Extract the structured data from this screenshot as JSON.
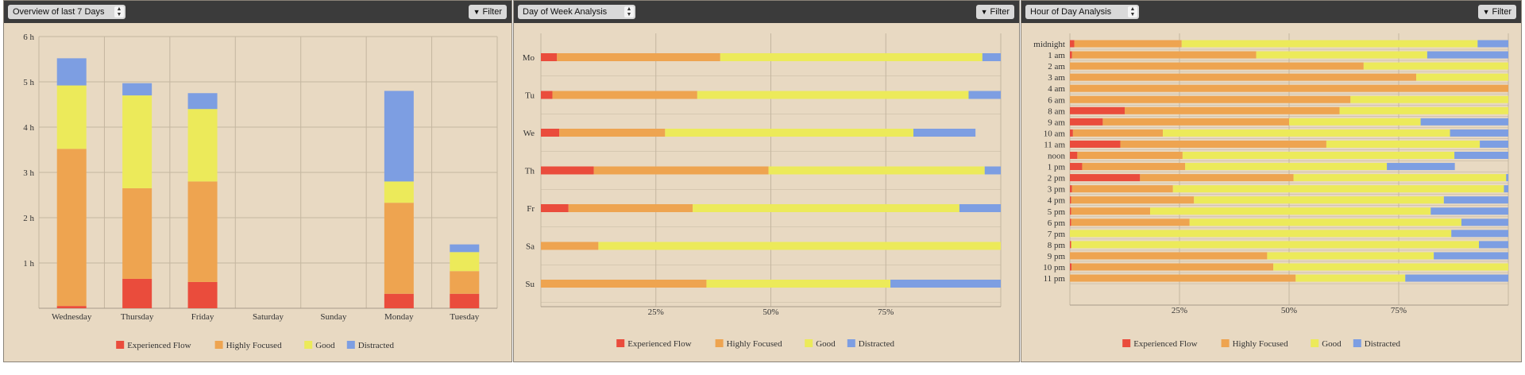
{
  "colors": {
    "flow": "#ea4c3c",
    "focused": "#eea450",
    "good": "#ecea5a",
    "distracted": "#7d9ee2"
  },
  "legend": [
    "Experienced Flow",
    "Highly Focused",
    "Good",
    "Distracted"
  ],
  "panels": [
    {
      "title": "Overview of last 7 Days",
      "filter": "Filter"
    },
    {
      "title": "Day of Week Analysis",
      "filter": "Filter"
    },
    {
      "title": "Hour of Day Analysis",
      "filter": "Filter"
    }
  ],
  "chart_data": [
    {
      "type": "bar",
      "stacked": true,
      "categories": [
        "Wednesday",
        "Thursday",
        "Friday",
        "Saturday",
        "Sunday",
        "Monday",
        "Tuesday"
      ],
      "ylim": [
        0,
        6
      ],
      "yticks": [
        "1 h",
        "2 h",
        "3 h",
        "4 h",
        "5 h",
        "6 h"
      ],
      "grid": true,
      "legend_position": "bottom",
      "series": [
        {
          "name": "Experienced Flow",
          "values": [
            0.05,
            0.65,
            0.58,
            0,
            0,
            0.32,
            0.32
          ]
        },
        {
          "name": "Highly Focused",
          "values": [
            3.47,
            2.0,
            2.22,
            0,
            0,
            2.01,
            0.5
          ]
        },
        {
          "name": "Good",
          "values": [
            1.4,
            2.05,
            1.6,
            0,
            0,
            0.47,
            0.42
          ]
        },
        {
          "name": "Distracted",
          "values": [
            0.6,
            0.27,
            0.35,
            0,
            0,
            2.0,
            0.17
          ]
        }
      ]
    },
    {
      "type": "bar",
      "orientation": "horizontal",
      "stacked": true,
      "normalized": true,
      "categories": [
        "Mo",
        "Tu",
        "We",
        "Th",
        "Fr",
        "Sa",
        "Su"
      ],
      "xlim": [
        0,
        100
      ],
      "xticks": [
        "25%",
        "50%",
        "75%"
      ],
      "grid": true,
      "legend_position": "bottom",
      "series": [
        {
          "name": "Experienced Flow",
          "values": [
            3.5,
            2.5,
            4,
            11.5,
            6,
            0,
            0
          ]
        },
        {
          "name": "Highly Focused",
          "values": [
            35.5,
            31.5,
            23,
            38,
            27,
            12.5,
            36
          ]
        },
        {
          "name": "Good",
          "values": [
            57,
            59,
            54,
            47,
            58,
            87.5,
            40
          ]
        },
        {
          "name": "Distracted",
          "values": [
            4,
            7,
            13.5,
            3.5,
            9,
            0,
            24
          ]
        }
      ]
    },
    {
      "type": "bar",
      "orientation": "horizontal",
      "stacked": true,
      "normalized": true,
      "categories": [
        "midnight",
        "1 am",
        "2 am",
        "3 am",
        "4 am",
        "6 am",
        "8 am",
        "9 am",
        "10 am",
        "11 am",
        "noon",
        "1 pm",
        "2 pm",
        "3 pm",
        "4 pm",
        "5 pm",
        "6 pm",
        "7 pm",
        "8 pm",
        "9 pm",
        "10 pm",
        "11 pm"
      ],
      "xlim": [
        0,
        100
      ],
      "xticks": [
        "25%",
        "50%",
        "75%"
      ],
      "grid": true,
      "legend_position": "bottom",
      "series": [
        {
          "name": "Experienced Flow",
          "values": [
            1,
            0.5,
            0,
            0,
            0,
            0,
            12.5,
            7.5,
            0.7,
            11.5,
            1.7,
            2.8,
            16,
            0.5,
            0.3,
            0.3,
            0.3,
            0,
            0.3,
            0,
            0.4,
            0
          ]
        },
        {
          "name": "Highly Focused",
          "values": [
            24.5,
            42,
            67,
            79,
            100,
            64,
            49,
            42.5,
            20.5,
            47,
            24,
            23.5,
            35,
            23,
            28,
            18,
            27,
            0,
            0,
            45,
            46,
            51.5
          ]
        },
        {
          "name": "Good",
          "values": [
            67.5,
            39,
            33,
            21,
            0,
            36,
            38.5,
            30,
            65.5,
            35,
            62,
            46,
            48.5,
            75.5,
            57,
            64,
            62,
            87,
            93,
            38,
            53.6,
            25
          ]
        },
        {
          "name": "Distracted",
          "values": [
            7,
            18.5,
            0,
            0,
            0,
            0,
            0,
            20,
            13.3,
            6.5,
            12.3,
            15.5,
            0.5,
            1,
            14.7,
            17.7,
            10.7,
            13,
            6.7,
            17,
            0,
            23.5
          ]
        }
      ]
    }
  ]
}
